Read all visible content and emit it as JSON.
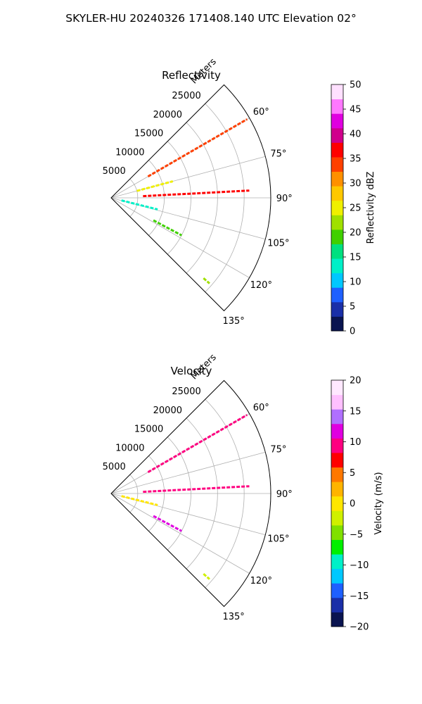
{
  "figure": {
    "title": "SKYLER-HU  20240326  171408.140 UTC Elevation 02°"
  },
  "chart_data": [
    {
      "type": "heatmap",
      "projection": "polar-sector",
      "title": "Reflectivity",
      "radial_label": "Meters",
      "radial_ticks": [
        "5000",
        "10000",
        "15000",
        "20000",
        "25000"
      ],
      "radial_tick_values": [
        5000,
        10000,
        15000,
        20000,
        25000
      ],
      "rmax": 30000,
      "azimuth_ticks": [
        "60°",
        "75°",
        "90°",
        "105°",
        "120°",
        "135°"
      ],
      "azimuth_tick_values": [
        60,
        75,
        90,
        105,
        120,
        135
      ],
      "azimuth_range": [
        45,
        135
      ],
      "grid": true,
      "colorbar": {
        "label": "Reflectivity dBZ",
        "ticks": [
          "0",
          "5",
          "10",
          "15",
          "20",
          "25",
          "30",
          "35",
          "40",
          "45",
          "50"
        ],
        "range": [
          0,
          50
        ],
        "colors": [
          "#0a1450",
          "#1a2fa8",
          "#1e60ff",
          "#00c8ff",
          "#00f0c8",
          "#00e080",
          "#40d000",
          "#a0e000",
          "#f0f000",
          "#ffc800",
          "#ff9000",
          "#ff4000",
          "#ff0000",
          "#d0008c",
          "#e000e0",
          "#ff78ff",
          "#ffe0ff"
        ]
      },
      "echoes": [
        {
          "az": 60,
          "r0": 8000,
          "r1": 29500,
          "value": 35
        },
        {
          "az": 75,
          "r0": 5000,
          "r1": 12000,
          "value": 25
        },
        {
          "az": 87,
          "r0": 6000,
          "r1": 26000,
          "value": 36
        },
        {
          "az": 104,
          "r0": 2000,
          "r1": 9000,
          "value": 12
        },
        {
          "az": 118,
          "r0": 9000,
          "r1": 15000,
          "value": 18
        },
        {
          "az": 131,
          "r0": 23000,
          "r1": 24500,
          "value": 22
        }
      ]
    },
    {
      "type": "heatmap",
      "projection": "polar-sector",
      "title": "Velocity",
      "radial_label": "Meters",
      "radial_ticks": [
        "5000",
        "10000",
        "15000",
        "20000",
        "25000"
      ],
      "radial_tick_values": [
        5000,
        10000,
        15000,
        20000,
        25000
      ],
      "rmax": 30000,
      "azimuth_ticks": [
        "60°",
        "75°",
        "90°",
        "105°",
        "120°",
        "135°"
      ],
      "azimuth_tick_values": [
        60,
        75,
        90,
        105,
        120,
        135
      ],
      "azimuth_range": [
        45,
        135
      ],
      "grid": true,
      "colorbar": {
        "label": "Velocity (m/s)",
        "ticks": [
          "−20",
          "−15",
          "−10",
          "−5",
          "0",
          "5",
          "10",
          "15",
          "20"
        ],
        "range": [
          -20,
          20
        ],
        "colors": [
          "#0a1450",
          "#1a2fa8",
          "#1e60ff",
          "#00c8ff",
          "#00f0c8",
          "#00f000",
          "#80e000",
          "#d0f000",
          "#ffe600",
          "#ffb400",
          "#ff7800",
          "#ff0000",
          "#ff0080",
          "#e000e0",
          "#b070ff",
          "#ffc0ff",
          "#ffe8ff"
        ]
      },
      "echoes": [
        {
          "az": 60,
          "r0": 8000,
          "r1": 29500,
          "value": 10
        },
        {
          "az": 87,
          "r0": 6000,
          "r1": 26000,
          "value": 10
        },
        {
          "az": 104,
          "r0": 2000,
          "r1": 9000,
          "value": 0
        },
        {
          "az": 118,
          "r0": 9000,
          "r1": 15000,
          "value": 12
        },
        {
          "az": 131,
          "r0": 23000,
          "r1": 24500,
          "value": -3
        }
      ]
    }
  ]
}
